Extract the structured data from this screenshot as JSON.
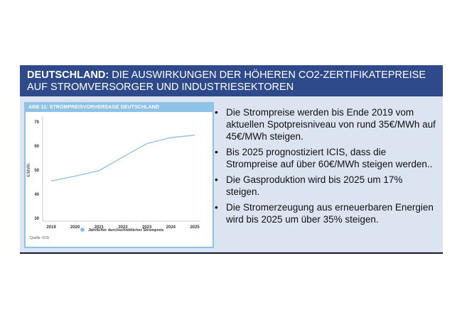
{
  "header": {
    "title_bold": "DEUTSCHLAND:",
    "title_rest": " DIE AUSWIRKUNGEN DER HÖHEREN CO2-ZERTIFIKATEPREISE AUF STROMVERSORGER UND INDUSTRIESEKTOREN"
  },
  "colors": {
    "header_bg": "#2e4a8a",
    "slide_bg": "#dce3f1",
    "chart_accent": "#8ec2e6",
    "series_line": "#8ec2e6"
  },
  "chart_data": {
    "type": "line",
    "title": "ABB 11: STROMPREISVORHERSAGE DEUTSCHLAND",
    "ylabel": "€/MWh",
    "xlabel": "",
    "ylim": [
      30,
      70
    ],
    "yticks": [
      30,
      40,
      50,
      60,
      70
    ],
    "x": [
      "2019",
      "2020",
      "2021",
      "2022",
      "2023",
      "2024",
      "2025"
    ],
    "series": [
      {
        "name": "Jährlicher durchschnittlicher Strompreis",
        "values": [
          45.5,
          47.5,
          49.8,
          55.5,
          61,
          63.5,
          64.5
        ]
      }
    ],
    "legend_position": "bottom",
    "grid": false,
    "source": "Quelle: ICIS"
  },
  "bullets": [
    "Die Strompreise werden bis Ende 2019 vom aktuellen Spotpreisniveau von rund 35€/MWh auf 45€/MWh steigen.",
    "Bis 2025 prognostiziert ICIS, dass die Strompreise auf über 60€/MWh steigen werden..",
    "Die Gasproduktion wird bis 2025 um 17% steigen.",
    "Die Stromerzeugung aus erneuerbaren Energien wird bis 2025 um über 35% steigen."
  ]
}
